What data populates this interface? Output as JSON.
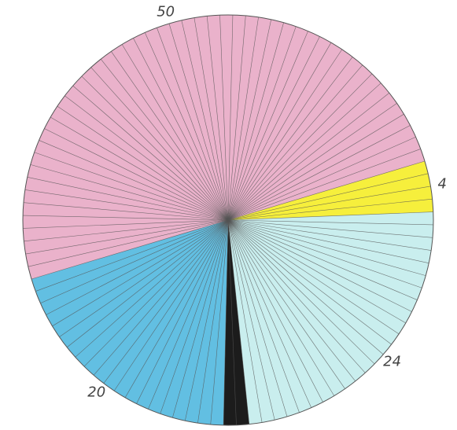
{
  "chart_data": {
    "type": "pie",
    "values": [
      4,
      24,
      2,
      20,
      50
    ],
    "labels": [
      "4",
      "24",
      null,
      "20",
      "50"
    ],
    "colors": [
      "#f6ef3c",
      "#c9eeee",
      "#1c1c1c",
      "#62bfe2",
      "#eab2cb"
    ]
  }
}
